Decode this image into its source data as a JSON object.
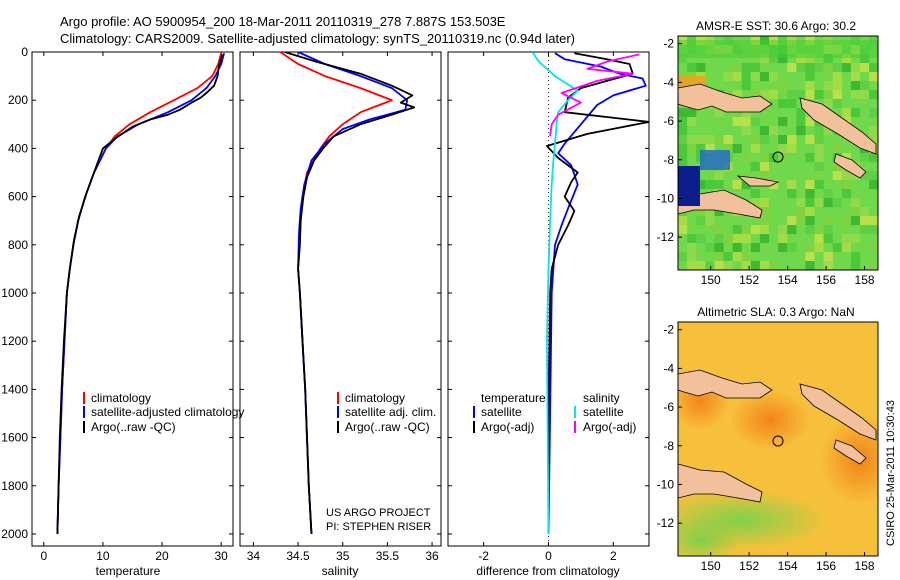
{
  "header": {
    "line1": "Argo profile: AO 5900954_200 18-Mar-2011 20110319_278 7.887S 153.503E",
    "line2": "Climatology: CARS2009. Satellite-adjusted climatology: synTS_20110319.nc (0.94d later)"
  },
  "credit": {
    "project": "US ARGO PROJECT",
    "pi": "PI: STEPHEN RISER",
    "stamp": "CSIRO 25-Mar-2011 10:30:43"
  },
  "colors": {
    "clim": "#ff0000",
    "sat": "#0000ff",
    "argo": "#000000",
    "sal_sat": "#00e5ee",
    "sal_argo": "#ff00ff",
    "land": "#f2c09a"
  },
  "chart_data": [
    {
      "id": "temperature",
      "type": "line",
      "xlabel": "temperature",
      "xlim": [
        -2,
        32
      ],
      "ylim": [
        2050,
        0
      ],
      "xticks": [
        0,
        10,
        20,
        30
      ],
      "yticks": [
        0,
        200,
        400,
        600,
        800,
        1000,
        1200,
        1400,
        1600,
        1800,
        2000
      ],
      "legend": [
        "climatology",
        "satellite-adjusted climatology",
        "Argo(..raw -QC)"
      ],
      "series": [
        {
          "name": "climatology",
          "color": "#ff0000",
          "points": [
            [
              30,
              5
            ],
            [
              29.5,
              50
            ],
            [
              28.5,
              100
            ],
            [
              26,
              150
            ],
            [
              22,
              200
            ],
            [
              18,
              250
            ],
            [
              14.5,
              300
            ],
            [
              12,
              350
            ],
            [
              10.5,
              400
            ],
            [
              8.5,
              500
            ],
            [
              7,
              600
            ],
            [
              5.8,
              700
            ],
            [
              5,
              800
            ],
            [
              4.4,
              900
            ],
            [
              3.9,
              1000
            ],
            [
              3.5,
              1200
            ],
            [
              3.1,
              1400
            ],
            [
              2.8,
              1600
            ],
            [
              2.5,
              1800
            ],
            [
              2.3,
              2000
            ]
          ]
        },
        {
          "name": "satellite-adjusted climatology",
          "color": "#0000ff",
          "points": [
            [
              30.5,
              5
            ],
            [
              30,
              50
            ],
            [
              29,
              100
            ],
            [
              27.5,
              150
            ],
            [
              25,
              200
            ],
            [
              21,
              250
            ],
            [
              16,
              300
            ],
            [
              12.5,
              350
            ],
            [
              10.5,
              400
            ],
            [
              8.5,
              500
            ],
            [
              7,
              600
            ],
            [
              5.8,
              700
            ],
            [
              5,
              800
            ],
            [
              4.4,
              900
            ],
            [
              3.9,
              1000
            ],
            [
              3.5,
              1200
            ],
            [
              3.1,
              1400
            ],
            [
              2.8,
              1600
            ],
            [
              2.5,
              1800
            ],
            [
              2.3,
              2000
            ]
          ]
        },
        {
          "name": "Argo(..raw -QC)",
          "color": "#000000",
          "points": [
            [
              30.2,
              10
            ],
            [
              29.6,
              60
            ],
            [
              29.4,
              100
            ],
            [
              28.8,
              140
            ],
            [
              27.5,
              170
            ],
            [
              26.5,
              190
            ],
            [
              25,
              210
            ],
            [
              23,
              240
            ],
            [
              21,
              260
            ],
            [
              18,
              280
            ],
            [
              15,
              310
            ],
            [
              12,
              360
            ],
            [
              10,
              400
            ],
            [
              8.8,
              480
            ],
            [
              7.3,
              580
            ],
            [
              6,
              680
            ],
            [
              5.1,
              780
            ],
            [
              4.4,
              900
            ],
            [
              3.9,
              1000
            ],
            [
              3.4,
              1200
            ],
            [
              3.0,
              1400
            ],
            [
              2.7,
              1600
            ],
            [
              2.5,
              1800
            ],
            [
              2.3,
              2000
            ]
          ]
        }
      ]
    },
    {
      "id": "salinity",
      "type": "line",
      "xlabel": "salinity",
      "xlim": [
        33.85,
        36.1
      ],
      "ylim": [
        2050,
        0
      ],
      "xticks": [
        34,
        34.5,
        35,
        35.5,
        36
      ],
      "legend": [
        "climatology",
        "satellite adj. clim.",
        "Argo(..raw -QC)"
      ],
      "series": [
        {
          "name": "climatology",
          "color": "#ff0000",
          "points": [
            [
              34.3,
              0
            ],
            [
              34.5,
              50
            ],
            [
              34.8,
              100
            ],
            [
              35.2,
              150
            ],
            [
              35.55,
              200
            ],
            [
              35.2,
              250
            ],
            [
              35.0,
              300
            ],
            [
              34.85,
              350
            ],
            [
              34.75,
              400
            ],
            [
              34.6,
              500
            ],
            [
              34.55,
              600
            ],
            [
              34.52,
              700
            ],
            [
              34.51,
              800
            ],
            [
              34.5,
              900
            ],
            [
              34.52,
              1000
            ],
            [
              34.55,
              1200
            ],
            [
              34.58,
              1400
            ],
            [
              34.6,
              1600
            ],
            [
              34.62,
              1800
            ],
            [
              34.65,
              2000
            ]
          ]
        },
        {
          "name": "satellite adj. clim.",
          "color": "#0000ff",
          "points": [
            [
              34.5,
              0
            ],
            [
              34.8,
              50
            ],
            [
              35.2,
              100
            ],
            [
              35.55,
              150
            ],
            [
              35.72,
              200
            ],
            [
              35.7,
              240
            ],
            [
              35.3,
              280
            ],
            [
              35.0,
              320
            ],
            [
              34.8,
              380
            ],
            [
              34.65,
              450
            ],
            [
              34.57,
              550
            ],
            [
              34.53,
              650
            ],
            [
              34.51,
              750
            ],
            [
              34.5,
              900
            ],
            [
              34.52,
              1000
            ],
            [
              34.55,
              1200
            ],
            [
              34.58,
              1400
            ],
            [
              34.6,
              1600
            ],
            [
              34.62,
              1800
            ],
            [
              34.65,
              2000
            ]
          ]
        },
        {
          "name": "Argo(..raw -QC)",
          "color": "#000000",
          "points": [
            [
              34.35,
              0
            ],
            [
              34.7,
              40
            ],
            [
              35.2,
              90
            ],
            [
              35.55,
              140
            ],
            [
              35.78,
              180
            ],
            [
              35.65,
              210
            ],
            [
              35.8,
              230
            ],
            [
              35.55,
              260
            ],
            [
              35.2,
              300
            ],
            [
              34.9,
              350
            ],
            [
              34.78,
              400
            ],
            [
              34.68,
              450
            ],
            [
              34.6,
              520
            ],
            [
              34.56,
              600
            ],
            [
              34.53,
              700
            ],
            [
              34.52,
              800
            ],
            [
              34.5,
              900
            ],
            [
              34.52,
              1000
            ],
            [
              34.55,
              1200
            ],
            [
              34.58,
              1400
            ],
            [
              34.6,
              1600
            ],
            [
              34.62,
              1800
            ],
            [
              34.65,
              2000
            ]
          ]
        }
      ]
    },
    {
      "id": "difference",
      "type": "line",
      "xlabel": "difference from climatology",
      "xlim": [
        -3.1,
        3.1
      ],
      "ylim": [
        2050,
        0
      ],
      "xticks": [
        -2,
        0,
        2
      ],
      "legend_temp_title": "temperature",
      "legend_sal_title": "salinity",
      "legend_temp": [
        "satellite",
        "Argo(-adj)"
      ],
      "legend_sal": [
        "satellite",
        "Argo(-adj)"
      ],
      "series": [
        {
          "name": "temperature satellite",
          "color": "#0000ff",
          "points": [
            [
              0.2,
              5
            ],
            [
              0.5,
              30
            ],
            [
              1.6,
              60
            ],
            [
              2.2,
              90
            ],
            [
              2.9,
              110
            ],
            [
              3,
              140
            ],
            [
              2,
              180
            ],
            [
              1.5,
              220
            ],
            [
              1,
              300
            ],
            [
              0.5,
              380
            ],
            [
              0.3,
              420
            ],
            [
              0.7,
              470
            ],
            [
              0.9,
              550
            ],
            [
              0.6,
              650
            ],
            [
              0.4,
              720
            ],
            [
              0.2,
              800
            ],
            [
              0.1,
              1000
            ],
            [
              0.05,
              1500
            ],
            [
              0,
              2000
            ]
          ]
        },
        {
          "name": "temperature Argo(-adj)",
          "color": "#000000",
          "points": [
            [
              0.8,
              5
            ],
            [
              1.8,
              30
            ],
            [
              2.5,
              50
            ],
            [
              2.6,
              90
            ],
            [
              1.8,
              120
            ],
            [
              1,
              150
            ],
            [
              0.6,
              190
            ],
            [
              0.5,
              250
            ],
            [
              3.1,
              290
            ],
            [
              1.2,
              340
            ],
            [
              -0.05,
              390
            ],
            [
              0.3,
              440
            ],
            [
              0.9,
              500
            ],
            [
              0.7,
              540
            ],
            [
              0.5,
              600
            ],
            [
              0.8,
              660
            ],
            [
              0.6,
              720
            ],
            [
              0.3,
              800
            ],
            [
              0.1,
              900
            ],
            [
              0.05,
              1000
            ],
            [
              0,
              1500
            ],
            [
              0,
              2000
            ]
          ]
        },
        {
          "name": "salinity satellite",
          "color": "#00e5ee",
          "points": [
            [
              -0.5,
              0
            ],
            [
              -0.3,
              40
            ],
            [
              0.2,
              100
            ],
            [
              0.9,
              160
            ],
            [
              0.6,
              200
            ],
            [
              0.3,
              250
            ],
            [
              0.25,
              300
            ],
            [
              0.2,
              380
            ],
            [
              0.15,
              450
            ],
            [
              0.1,
              550
            ],
            [
              0.05,
              700
            ],
            [
              0,
              900
            ],
            [
              -0.05,
              1200
            ],
            [
              0,
              2000
            ]
          ]
        },
        {
          "name": "salinity Argo(-adj)",
          "color": "#ff00ff",
          "points": [
            [
              2.8,
              10
            ],
            [
              1.8,
              40
            ],
            [
              1.2,
              70
            ],
            [
              2.6,
              90
            ],
            [
              1.5,
              120
            ],
            [
              0.4,
              170
            ],
            [
              1.0,
              210
            ],
            [
              0.3,
              260
            ],
            [
              0.1,
              300
            ],
            [
              0.05,
              350
            ]
          ]
        }
      ]
    },
    {
      "id": "sst-map",
      "type": "heatmap",
      "title": "AMSR-E SST: 30.6 Argo: 30.2",
      "xticks": [
        150,
        152,
        154,
        156,
        158
      ],
      "yticks": [
        -2,
        -4,
        -6,
        -8,
        -10,
        -12
      ],
      "xlim": [
        148.3,
        158.7
      ],
      "ylim": [
        -1.6,
        -13.7
      ],
      "float_position": [
        153.5,
        -7.9
      ]
    },
    {
      "id": "sla-map",
      "type": "heatmap",
      "title": "Altimetric SLA: 0.3 Argo: NaN",
      "xticks": [
        150,
        152,
        154,
        156,
        158
      ],
      "yticks": [
        -2,
        -4,
        -6,
        -8,
        -10,
        -12
      ],
      "xlim": [
        148.3,
        158.7
      ],
      "ylim": [
        -1.6,
        -13.7
      ],
      "float_position": [
        153.5,
        -7.9
      ]
    }
  ]
}
